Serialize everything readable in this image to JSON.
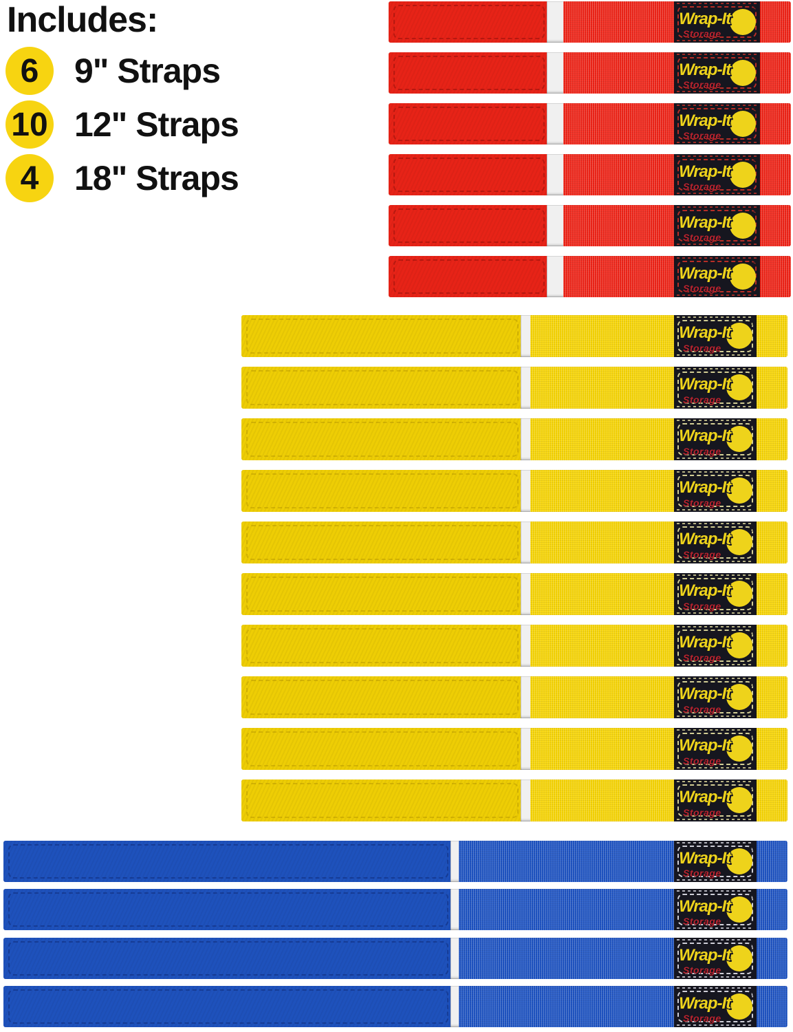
{
  "legend": {
    "title": "Includes:",
    "items": [
      {
        "count": "6",
        "label": "9\" Straps"
      },
      {
        "count": "10",
        "label": "12\" Straps"
      },
      {
        "count": "4",
        "label": "18\" Straps"
      }
    ]
  },
  "brand": {
    "name": "Wrap-It",
    "registered": "®",
    "sub": "Storage"
  },
  "strap_groups": [
    {
      "id": "9-inch",
      "length_label": "9\"",
      "color": "red",
      "count": 6
    },
    {
      "id": "12-inch",
      "length_label": "12\"",
      "color": "yellow",
      "count": 10
    },
    {
      "id": "18-inch",
      "length_label": "18\"",
      "color": "blue",
      "count": 4
    }
  ],
  "colors": {
    "strap_red": "#ee2418",
    "strap_yellow": "#f6d405",
    "strap_blue": "#1f54c2",
    "label_background": "#16161f",
    "label_stitch_red": "#c03028",
    "label_stitch_yellow": "#ded89c",
    "label_stitch_blue": "#d9d9e2",
    "logo_yellow": "#eed31b",
    "storage_red": "#bb2430",
    "legend_circle_yellow": "#f7d411",
    "text_black": "#111111",
    "background_white": "#ffffff"
  }
}
